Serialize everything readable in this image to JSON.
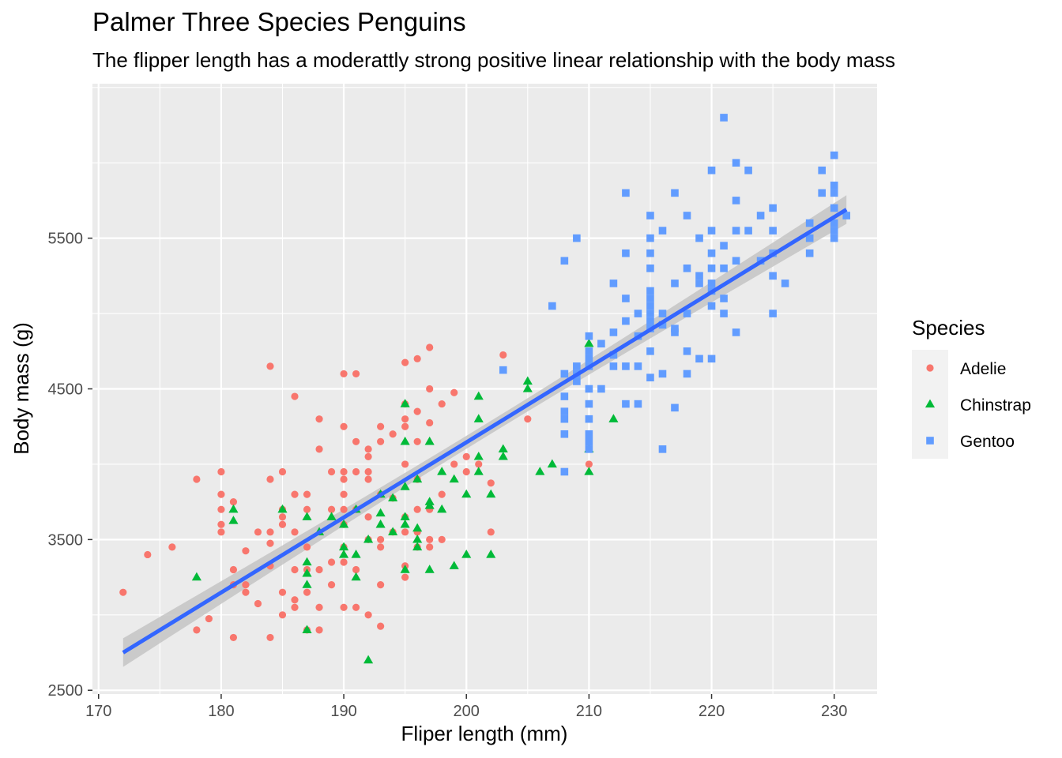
{
  "chart_data": {
    "type": "scatter",
    "title": "Palmer Three Species Penguins",
    "subtitle": "The flipper length has a moderattly strong positive linear relationship with the body mass",
    "xlabel": "Fliper length (mm)",
    "ylabel": "Body mass (g)",
    "xlim": [
      169.5,
      233.5
    ],
    "ylim": [
      2475,
      6525
    ],
    "x_ticks": [
      170,
      180,
      190,
      200,
      210,
      220,
      230
    ],
    "y_ticks": [
      2500,
      3500,
      4500,
      5500
    ],
    "legend_title": "Species",
    "legend_position": "right",
    "grid": true,
    "colors": {
      "panel": "#ebebeb",
      "grid": "#ffffff",
      "Adelie": "#f8766d",
      "Chinstrap": "#00ba38",
      "Gentoo": "#619cff",
      "fit_line": "#3366ff",
      "confidence_band": "#c4c4c4"
    },
    "fit": {
      "method": "linear",
      "x": [
        172,
        231
      ],
      "y": [
        2750,
        5690
      ],
      "band_halfwidth_at_ends": 95
    },
    "series": [
      {
        "name": "Adelie",
        "shape": "circle",
        "points": [
          [
            172,
            3150
          ],
          [
            174,
            3400
          ],
          [
            176,
            3450
          ],
          [
            178,
            3900
          ],
          [
            178,
            2900
          ],
          [
            179,
            2975
          ],
          [
            180,
            3950
          ],
          [
            180,
            3800
          ],
          [
            180,
            3700
          ],
          [
            180,
            3600
          ],
          [
            180,
            3550
          ],
          [
            181,
            3750
          ],
          [
            181,
            3300
          ],
          [
            181,
            3200
          ],
          [
            181,
            2850
          ],
          [
            182,
            3425
          ],
          [
            182,
            3200
          ],
          [
            182,
            3150
          ],
          [
            183,
            3550
          ],
          [
            183,
            3075
          ],
          [
            184,
            4650
          ],
          [
            184,
            3900
          ],
          [
            184,
            3550
          ],
          [
            184,
            3475
          ],
          [
            184,
            3325
          ],
          [
            184,
            2850
          ],
          [
            185,
            3950
          ],
          [
            185,
            3700
          ],
          [
            185,
            3650
          ],
          [
            185,
            3600
          ],
          [
            185,
            3150
          ],
          [
            185,
            3000
          ],
          [
            186,
            4450
          ],
          [
            186,
            3800
          ],
          [
            186,
            3550
          ],
          [
            186,
            3300
          ],
          [
            186,
            3100
          ],
          [
            186,
            3050
          ],
          [
            187,
            3800
          ],
          [
            187,
            3700
          ],
          [
            187,
            3450
          ],
          [
            187,
            3300
          ],
          [
            187,
            3150
          ],
          [
            187,
            2900
          ],
          [
            188,
            4300
          ],
          [
            188,
            4100
          ],
          [
            188,
            3300
          ],
          [
            188,
            3050
          ],
          [
            188,
            2900
          ],
          [
            189,
            3950
          ],
          [
            189,
            3700
          ],
          [
            189,
            3350
          ],
          [
            189,
            3200
          ],
          [
            190,
            4600
          ],
          [
            190,
            4250
          ],
          [
            190,
            3950
          ],
          [
            190,
            3900
          ],
          [
            190,
            3800
          ],
          [
            190,
            3700
          ],
          [
            190,
            3600
          ],
          [
            190,
            3450
          ],
          [
            190,
            3350
          ],
          [
            190,
            3050
          ],
          [
            191,
            4600
          ],
          [
            191,
            4150
          ],
          [
            191,
            3950
          ],
          [
            191,
            3700
          ],
          [
            191,
            3300
          ],
          [
            191,
            3050
          ],
          [
            192,
            4100
          ],
          [
            192,
            4050
          ],
          [
            192,
            3950
          ],
          [
            192,
            3900
          ],
          [
            192,
            3650
          ],
          [
            192,
            3500
          ],
          [
            192,
            3000
          ],
          [
            193,
            4250
          ],
          [
            193,
            4150
          ],
          [
            193,
            3800
          ],
          [
            193,
            3500
          ],
          [
            193,
            3450
          ],
          [
            193,
            3200
          ],
          [
            193,
            2925
          ],
          [
            194,
            4200
          ],
          [
            194,
            3775
          ],
          [
            194,
            3550
          ],
          [
            195,
            4675
          ],
          [
            195,
            4400
          ],
          [
            195,
            4300
          ],
          [
            195,
            4250
          ],
          [
            195,
            4000
          ],
          [
            195,
            3650
          ],
          [
            195,
            3550
          ],
          [
            195,
            3325
          ],
          [
            195,
            3250
          ],
          [
            196,
            4700
          ],
          [
            196,
            4350
          ],
          [
            196,
            4150
          ],
          [
            196,
            3900
          ],
          [
            196,
            3700
          ],
          [
            196,
            3550
          ],
          [
            196,
            3450
          ],
          [
            197,
            4775
          ],
          [
            197,
            4500
          ],
          [
            197,
            4275
          ],
          [
            197,
            3700
          ],
          [
            197,
            3500
          ],
          [
            197,
            3450
          ],
          [
            198,
            4400
          ],
          [
            198,
            3800
          ],
          [
            198,
            3500
          ],
          [
            199,
            4475
          ],
          [
            199,
            4000
          ],
          [
            200,
            4050
          ],
          [
            200,
            3950
          ],
          [
            201,
            4000
          ],
          [
            202,
            3875
          ],
          [
            202,
            3550
          ],
          [
            203,
            4725
          ],
          [
            205,
            4300
          ],
          [
            210,
            4000
          ]
        ]
      },
      {
        "name": "Chinstrap",
        "shape": "triangle",
        "points": [
          [
            178,
            3250
          ],
          [
            181,
            3700
          ],
          [
            181,
            3625
          ],
          [
            185,
            3700
          ],
          [
            187,
            3650
          ],
          [
            187,
            3350
          ],
          [
            187,
            3275
          ],
          [
            187,
            3200
          ],
          [
            187,
            2900
          ],
          [
            188,
            3550
          ],
          [
            189,
            3650
          ],
          [
            190,
            3600
          ],
          [
            190,
            3450
          ],
          [
            190,
            3400
          ],
          [
            191,
            3700
          ],
          [
            191,
            3400
          ],
          [
            191,
            3250
          ],
          [
            192,
            3500
          ],
          [
            192,
            2700
          ],
          [
            193,
            3800
          ],
          [
            193,
            3675
          ],
          [
            193,
            3600
          ],
          [
            194,
            3775
          ],
          [
            194,
            3550
          ],
          [
            195,
            4400
          ],
          [
            195,
            4150
          ],
          [
            195,
            3850
          ],
          [
            195,
            3650
          ],
          [
            195,
            3600
          ],
          [
            195,
            3300
          ],
          [
            196,
            3900
          ],
          [
            196,
            3575
          ],
          [
            196,
            3500
          ],
          [
            196,
            3450
          ],
          [
            197,
            4150
          ],
          [
            197,
            3750
          ],
          [
            197,
            3725
          ],
          [
            197,
            3300
          ],
          [
            198,
            3950
          ],
          [
            198,
            3700
          ],
          [
            199,
            3900
          ],
          [
            199,
            3325
          ],
          [
            200,
            3800
          ],
          [
            200,
            3400
          ],
          [
            201,
            4450
          ],
          [
            201,
            4300
          ],
          [
            201,
            4050
          ],
          [
            201,
            3950
          ],
          [
            202,
            3800
          ],
          [
            202,
            3400
          ],
          [
            203,
            4100
          ],
          [
            203,
            4050
          ],
          [
            205,
            4550
          ],
          [
            205,
            4500
          ],
          [
            206,
            3950
          ],
          [
            207,
            4000
          ],
          [
            210,
            4800
          ],
          [
            210,
            4100
          ],
          [
            210,
            3950
          ],
          [
            212,
            4300
          ]
        ]
      },
      {
        "name": "Gentoo",
        "shape": "square",
        "points": [
          [
            203,
            4625
          ],
          [
            207,
            5050
          ],
          [
            208,
            5350
          ],
          [
            208,
            4600
          ],
          [
            208,
            4450
          ],
          [
            208,
            4350
          ],
          [
            208,
            4300
          ],
          [
            208,
            4200
          ],
          [
            208,
            3950
          ],
          [
            209,
            5500
          ],
          [
            209,
            4650
          ],
          [
            209,
            4600
          ],
          [
            209,
            4550
          ],
          [
            210,
            4850
          ],
          [
            210,
            4750
          ],
          [
            210,
            4700
          ],
          [
            210,
            4650
          ],
          [
            210,
            4500
          ],
          [
            210,
            4400
          ],
          [
            210,
            4300
          ],
          [
            210,
            4200
          ],
          [
            210,
            4150
          ],
          [
            210,
            4100
          ],
          [
            211,
            4800
          ],
          [
            211,
            4500
          ],
          [
            212,
            5200
          ],
          [
            212,
            4875
          ],
          [
            212,
            4725
          ],
          [
            212,
            4650
          ],
          [
            213,
            5800
          ],
          [
            213,
            5400
          ],
          [
            213,
            5100
          ],
          [
            213,
            4950
          ],
          [
            213,
            4650
          ],
          [
            213,
            4400
          ],
          [
            214,
            5000
          ],
          [
            214,
            4850
          ],
          [
            214,
            4650
          ],
          [
            214,
            4400
          ],
          [
            215,
            5650
          ],
          [
            215,
            5500
          ],
          [
            215,
            5400
          ],
          [
            215,
            5300
          ],
          [
            215,
            5150
          ],
          [
            215,
            5100
          ],
          [
            215,
            5050
          ],
          [
            215,
            5000
          ],
          [
            215,
            4950
          ],
          [
            215,
            4900
          ],
          [
            215,
            4750
          ],
          [
            215,
            4575
          ],
          [
            216,
            5550
          ],
          [
            216,
            5000
          ],
          [
            216,
            4925
          ],
          [
            216,
            4600
          ],
          [
            216,
            4100
          ],
          [
            217,
            5800
          ],
          [
            217,
            5200
          ],
          [
            217,
            4900
          ],
          [
            217,
            4875
          ],
          [
            217,
            4375
          ],
          [
            218,
            5650
          ],
          [
            218,
            5300
          ],
          [
            218,
            5000
          ],
          [
            218,
            4750
          ],
          [
            218,
            4600
          ],
          [
            219,
            5500
          ],
          [
            219,
            5250
          ],
          [
            219,
            5200
          ],
          [
            219,
            4700
          ],
          [
            220,
            5950
          ],
          [
            220,
            5550
          ],
          [
            220,
            5400
          ],
          [
            220,
            5300
          ],
          [
            220,
            5200
          ],
          [
            220,
            5150
          ],
          [
            220,
            5050
          ],
          [
            220,
            4700
          ],
          [
            221,
            6300
          ],
          [
            221,
            5450
          ],
          [
            221,
            5300
          ],
          [
            221,
            5100
          ],
          [
            221,
            5000
          ],
          [
            222,
            6000
          ],
          [
            222,
            5750
          ],
          [
            222,
            5550
          ],
          [
            222,
            5350
          ],
          [
            222,
            4875
          ],
          [
            223,
            5950
          ],
          [
            223,
            5550
          ],
          [
            224,
            5650
          ],
          [
            224,
            5350
          ],
          [
            225,
            5700
          ],
          [
            225,
            5550
          ],
          [
            225,
            5400
          ],
          [
            225,
            5250
          ],
          [
            225,
            5000
          ],
          [
            226,
            5200
          ],
          [
            228,
            5600
          ],
          [
            228,
            5500
          ],
          [
            228,
            5400
          ],
          [
            229,
            5950
          ],
          [
            229,
            5800
          ],
          [
            230,
            6050
          ],
          [
            230,
            5850
          ],
          [
            230,
            5800
          ],
          [
            230,
            5700
          ],
          [
            230,
            5600
          ],
          [
            230,
            5550
          ],
          [
            230,
            5500
          ],
          [
            231,
            5650
          ]
        ]
      }
    ]
  }
}
